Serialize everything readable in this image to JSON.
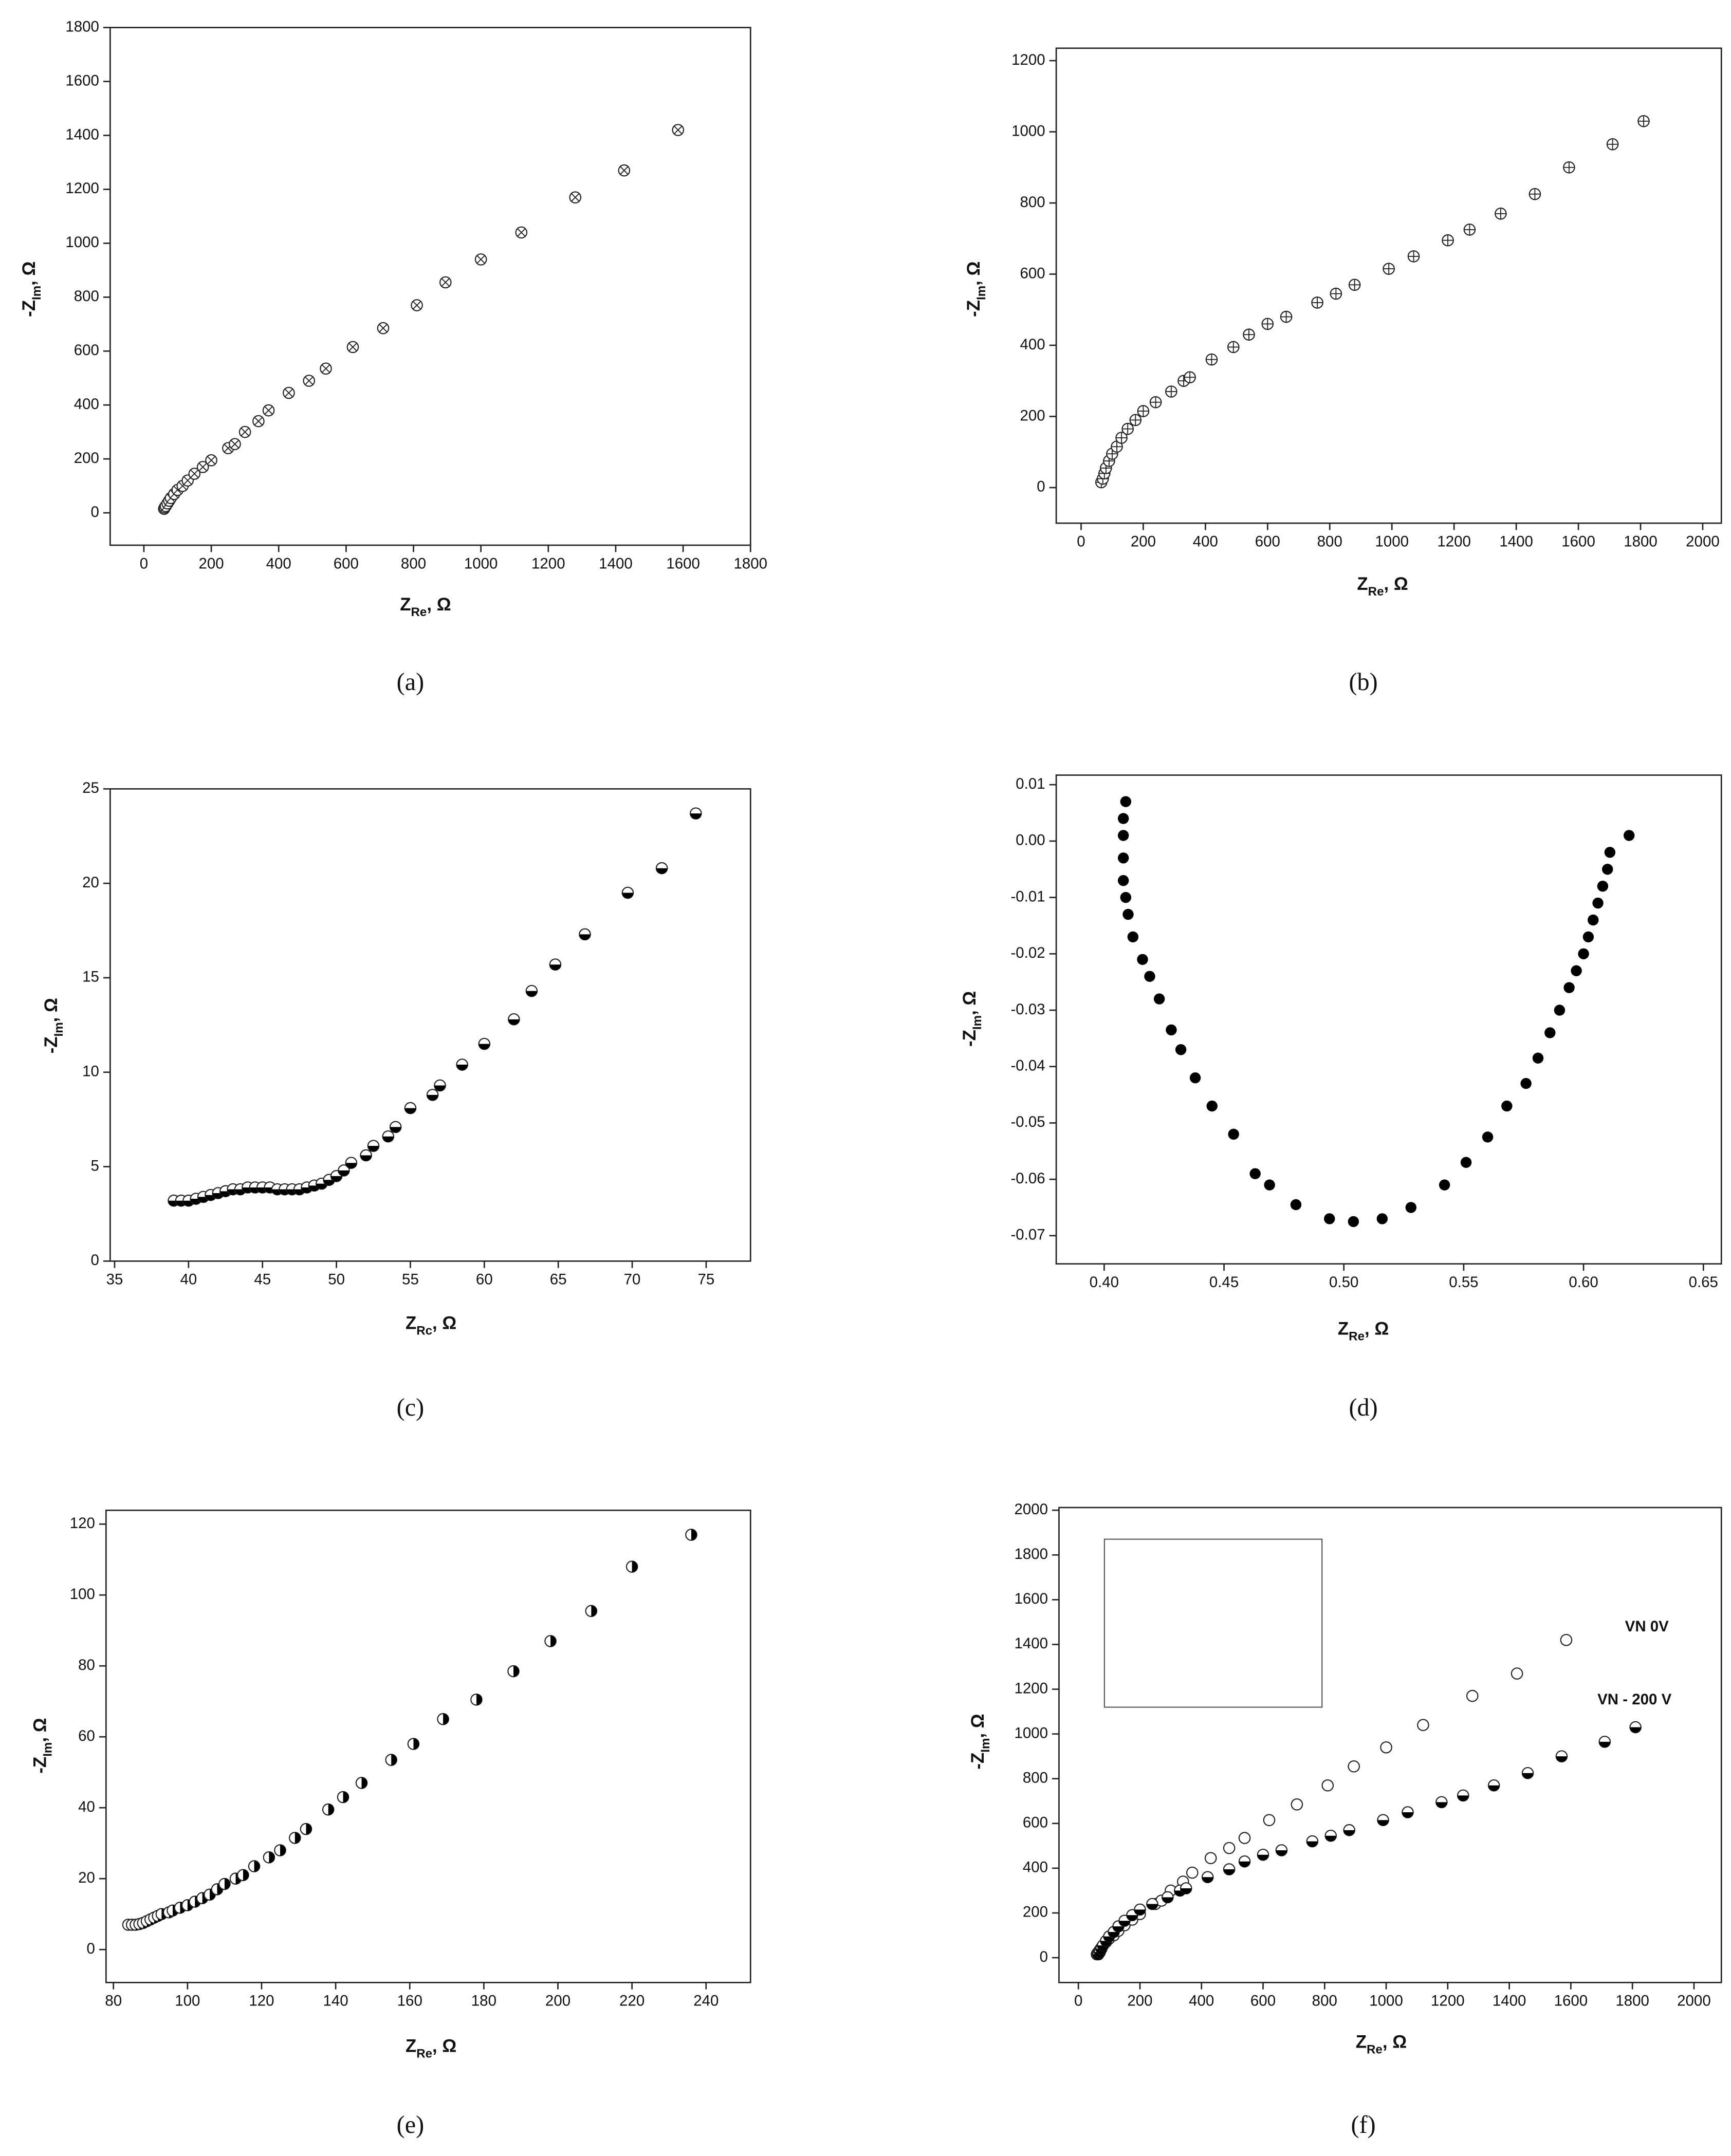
{
  "chart_data": [
    {
      "type": "scatter",
      "label": "(a)",
      "marker": "crossed",
      "x_label": [
        "Z",
        "Re",
        ", Ω"
      ],
      "y_label": [
        "-Z",
        "Im",
        ", Ω"
      ],
      "xlim": [
        -100,
        1800
      ],
      "ylim": [
        -120,
        1800
      ],
      "xticks": [
        0,
        200,
        400,
        600,
        800,
        1000,
        1200,
        1400,
        1600,
        1800
      ],
      "yticks": [
        0,
        200,
        400,
        600,
        800,
        1000,
        1200,
        1400,
        1600,
        1800
      ],
      "x": [
        60,
        62,
        65,
        70,
        75,
        80,
        90,
        100,
        115,
        130,
        150,
        175,
        200,
        250,
        270,
        300,
        340,
        370,
        430,
        490,
        540,
        620,
        710,
        810,
        895,
        1000,
        1120,
        1280,
        1425,
        1585
      ],
      "values": [
        15,
        20,
        25,
        35,
        45,
        55,
        70,
        85,
        100,
        120,
        145,
        170,
        195,
        240,
        255,
        300,
        340,
        380,
        445,
        490,
        535,
        615,
        685,
        770,
        855,
        940,
        1040,
        1170,
        1270,
        1420
      ]
    },
    {
      "type": "scatter",
      "label": "(b)",
      "marker": "plus",
      "x_label": [
        "Z",
        "Re",
        ", Ω"
      ],
      "y_label": [
        "-Z",
        "Im",
        ", Ω"
      ],
      "xlim": [
        -80,
        2060
      ],
      "ylim": [
        -100,
        1235
      ],
      "xticks": [
        0,
        200,
        400,
        600,
        800,
        1000,
        1200,
        1400,
        1600,
        1800,
        2000
      ],
      "yticks": [
        0,
        200,
        400,
        600,
        800,
        1000,
        1200
      ],
      "x": [
        65,
        70,
        75,
        80,
        90,
        100,
        115,
        130,
        150,
        175,
        200,
        240,
        290,
        330,
        350,
        420,
        490,
        540,
        600,
        660,
        760,
        820,
        880,
        990,
        1070,
        1180,
        1250,
        1350,
        1460,
        1570,
        1710,
        1810
      ],
      "values": [
        15,
        25,
        40,
        55,
        75,
        95,
        115,
        140,
        165,
        190,
        215,
        240,
        270,
        300,
        310,
        360,
        395,
        430,
        460,
        480,
        520,
        545,
        570,
        615,
        650,
        695,
        725,
        770,
        825,
        900,
        965,
        1030
      ]
    },
    {
      "type": "scatter",
      "label": "(c)",
      "marker": "half-bottom",
      "x_label": [
        "Z",
        "Rc",
        ", Ω"
      ],
      "y_label": [
        "-Z",
        "Im",
        ", Ω"
      ],
      "xlim": [
        34.7,
        78
      ],
      "ylim": [
        0,
        25
      ],
      "xticks": [
        35,
        40,
        45,
        50,
        55,
        60,
        65,
        70,
        75
      ],
      "yticks": [
        0,
        5,
        10,
        15,
        20,
        25
      ],
      "x": [
        39,
        39.5,
        40,
        40.5,
        41,
        41.5,
        42,
        42.5,
        43,
        43.5,
        44,
        44.5,
        45,
        45.5,
        46,
        46.5,
        47,
        47.5,
        48,
        48.5,
        49,
        49.5,
        50,
        50.5,
        51,
        52,
        52.5,
        53.5,
        54,
        55,
        56.5,
        57,
        58.5,
        60,
        62,
        63.2,
        64.8,
        66.8,
        69.7,
        72,
        74.3
      ],
      "values": [
        3.2,
        3.2,
        3.2,
        3.3,
        3.4,
        3.5,
        3.6,
        3.7,
        3.8,
        3.8,
        3.9,
        3.9,
        3.9,
        3.9,
        3.8,
        3.8,
        3.8,
        3.8,
        3.9,
        4.0,
        4.1,
        4.3,
        4.5,
        4.8,
        5.2,
        5.6,
        6.1,
        6.6,
        7.1,
        8.1,
        8.8,
        9.3,
        10.4,
        11.5,
        12.8,
        14.3,
        15.7,
        17.3,
        19.5,
        20.8,
        23.7
      ]
    },
    {
      "type": "scatter",
      "label": "(d)",
      "marker": "filled",
      "x_label": [
        "Z",
        "Re",
        ", Ω"
      ],
      "y_label": [
        "-Z",
        "Im",
        ", Ω"
      ],
      "xlim": [
        0.38,
        0.6575
      ],
      "ylim": [
        -0.075,
        0.0117
      ],
      "xticks": [
        {
          "value": 0.4,
          "label": "0.40"
        },
        0.45,
        {
          "value": 0.5,
          "label": "0.50"
        },
        0.55,
        {
          "value": 0.6,
          "label": "0.60"
        },
        0.65
      ],
      "yticks": [
        0.01,
        {
          "value": 0,
          "label": "0.00"
        },
        -0.01,
        -0.02,
        -0.03,
        -0.04,
        -0.05,
        -0.06,
        -0.07
      ],
      "x": [
        0.409,
        0.408,
        0.408,
        0.408,
        0.408,
        0.409,
        0.41,
        0.412,
        0.416,
        0.419,
        0.423,
        0.428,
        0.432,
        0.438,
        0.445,
        0.454,
        0.463,
        0.469,
        0.48,
        0.494,
        0.504,
        0.516,
        0.528,
        0.542,
        0.551,
        0.56,
        0.568,
        0.576,
        0.581,
        0.586,
        0.59,
        0.594,
        0.597,
        0.6,
        0.602,
        0.604,
        0.606,
        0.608,
        0.61,
        0.611,
        0.619
      ],
      "values": [
        0.007,
        0.004,
        0.001,
        -0.003,
        -0.007,
        -0.01,
        -0.013,
        -0.017,
        -0.021,
        -0.024,
        -0.028,
        -0.0335,
        -0.037,
        -0.042,
        -0.047,
        -0.052,
        -0.059,
        -0.061,
        -0.0645,
        -0.067,
        -0.0675,
        -0.067,
        -0.065,
        -0.061,
        -0.057,
        -0.0525,
        -0.047,
        -0.043,
        -0.0385,
        -0.034,
        -0.03,
        -0.026,
        -0.023,
        -0.02,
        -0.017,
        -0.014,
        -0.011,
        -0.008,
        -0.005,
        -0.002,
        0.001
      ]
    },
    {
      "type": "scatter",
      "label": "(e)",
      "marker": "half-right",
      "x_label": [
        "Z",
        "Re",
        ", Ω"
      ],
      "y_label": [
        "-Z",
        "Im",
        ", Ω"
      ],
      "xlim": [
        78,
        252
      ],
      "ylim": [
        -9.3,
        123.9
      ],
      "xticks": [
        80,
        100,
        120,
        140,
        160,
        180,
        200,
        220,
        240
      ],
      "yticks": [
        0,
        20,
        40,
        60,
        80,
        100,
        120
      ],
      "x": [
        84,
        85,
        86,
        87,
        88,
        89,
        90,
        91,
        92,
        93,
        95,
        96,
        98,
        100,
        102,
        104,
        106,
        108,
        110,
        113,
        115,
        118,
        122,
        125,
        129,
        132,
        138,
        142,
        147,
        155,
        161,
        169,
        178,
        188,
        198,
        209,
        220,
        236
      ],
      "values": [
        7,
        7,
        7,
        7.2,
        7.5,
        8,
        8.5,
        9,
        9.5,
        10,
        10.5,
        11,
        11.8,
        12.5,
        13.5,
        14.5,
        15.5,
        17,
        18.5,
        20,
        21,
        23.5,
        26,
        28,
        31.5,
        34,
        39.5,
        43,
        47,
        53.5,
        58,
        65,
        70.5,
        78.5,
        87,
        95.5,
        108,
        117
      ]
    },
    {
      "type": "scatter",
      "label": "(f)",
      "x_label": [
        "Z",
        "Re",
        ", Ω"
      ],
      "y_label": [
        "-Z",
        "Im",
        ", Ω"
      ],
      "xlim": [
        -63,
        2089
      ],
      "ylim": [
        -111,
        2012
      ],
      "xticks": [
        0,
        200,
        400,
        600,
        800,
        1000,
        1200,
        1400,
        1600,
        1800,
        2000
      ],
      "yticks": [
        0,
        200,
        400,
        600,
        800,
        1000,
        1200,
        1400,
        1600,
        1800,
        2000
      ],
      "series": [
        {
          "name": "VN 0V",
          "marker": "open",
          "x": [
            60,
            62,
            65,
            70,
            75,
            80,
            90,
            100,
            115,
            130,
            150,
            175,
            200,
            250,
            270,
            300,
            340,
            370,
            430,
            490,
            540,
            620,
            710,
            810,
            895,
            1000,
            1120,
            1280,
            1425,
            1585
          ],
          "values": [
            15,
            20,
            25,
            35,
            45,
            55,
            70,
            85,
            100,
            120,
            145,
            170,
            195,
            240,
            255,
            300,
            340,
            380,
            445,
            490,
            535,
            615,
            685,
            770,
            855,
            940,
            1040,
            1170,
            1270,
            1420
          ]
        },
        {
          "name": "VN - 200 V",
          "marker": "half-bottom",
          "x": [
            65,
            70,
            75,
            80,
            90,
            100,
            115,
            130,
            150,
            175,
            200,
            240,
            290,
            330,
            350,
            420,
            490,
            540,
            600,
            660,
            760,
            820,
            880,
            990,
            1070,
            1180,
            1250,
            1350,
            1460,
            1570,
            1710,
            1810
          ],
          "values": [
            15,
            25,
            40,
            55,
            75,
            95,
            115,
            140,
            165,
            190,
            215,
            240,
            270,
            300,
            310,
            360,
            395,
            430,
            460,
            480,
            520,
            545,
            570,
            615,
            650,
            695,
            725,
            770,
            825,
            900,
            965,
            1030
          ]
        }
      ]
    }
  ]
}
